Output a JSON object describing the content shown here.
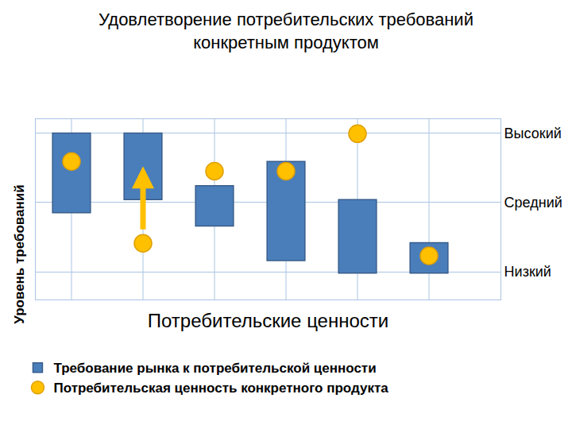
{
  "chart_data": {
    "type": "range_dot",
    "title": "Удовлетворение потребительских требований\nконкретным продуктом",
    "x_label": "Потребительские ценности",
    "y_label": "Уровень требований",
    "categories": [
      null,
      null,
      null,
      null,
      null,
      null
    ],
    "series": [
      {
        "name": "Требование рынка к потребительской ценности",
        "type": "range_bar",
        "color": "#4a7ebb",
        "low": [
          1.85,
          2.04,
          1.66,
          1.16,
          0.98,
          0.98
        ],
        "high": [
          3.0,
          3.0,
          2.24,
          2.59,
          2.04,
          1.42
        ]
      },
      {
        "name": "Потребительская ценность конкретного продукта",
        "type": "scatter",
        "color": "#ffc000",
        "marker": "circle",
        "values": [
          2.59,
          1.41,
          2.45,
          2.45,
          2.99,
          1.23
        ]
      }
    ],
    "ylim": [
      0.6,
      3.2
    ],
    "yticks": [
      {
        "value": 1,
        "label": "Низкий"
      },
      {
        "value": 2,
        "label": "Средний"
      },
      {
        "value": 3,
        "label": "Высокий"
      }
    ],
    "grid": true,
    "legend": "bottom",
    "tick_labels": "y"
  }
}
